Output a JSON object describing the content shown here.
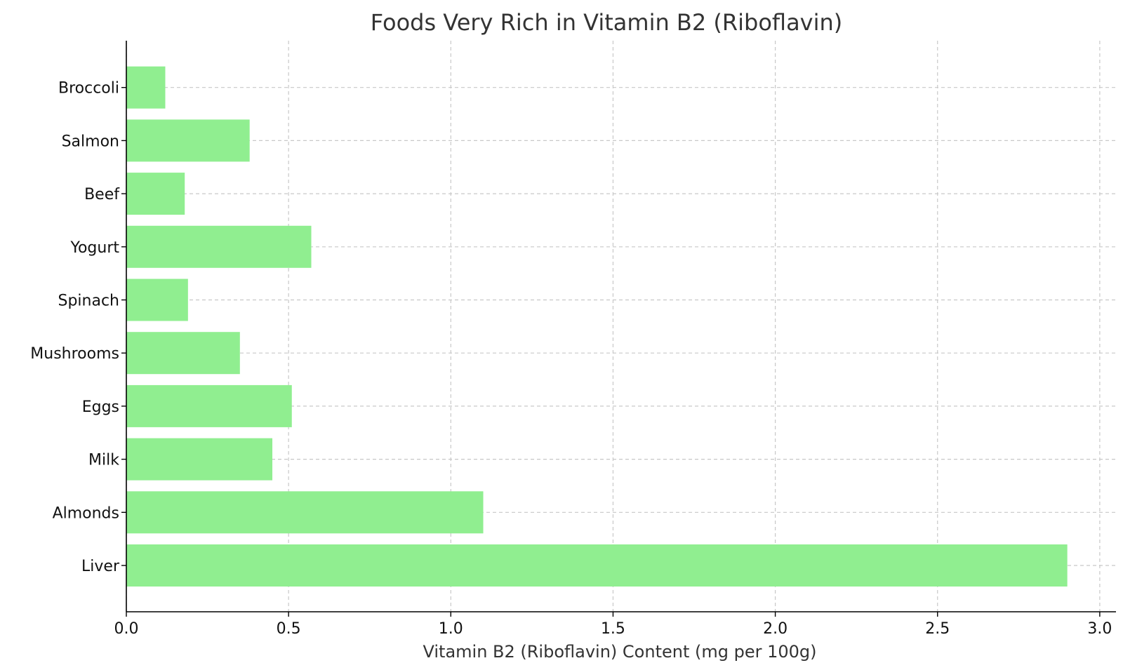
{
  "chart_data": {
    "type": "bar",
    "orientation": "horizontal",
    "title": "Foods Very Rich in Vitamin B2 (Riboflavin)",
    "xlabel": "Vitamin B2 (Riboflavin) Content (mg per 100g)",
    "ylabel": "",
    "categories": [
      "Liver",
      "Almonds",
      "Milk",
      "Eggs",
      "Mushrooms",
      "Spinach",
      "Yogurt",
      "Beef",
      "Salmon",
      "Broccoli"
    ],
    "values": [
      2.9,
      1.1,
      0.45,
      0.51,
      0.35,
      0.19,
      0.57,
      0.18,
      0.38,
      0.12
    ],
    "xlim": [
      0,
      3.05
    ],
    "xticks": [
      0.0,
      0.5,
      1.0,
      1.5,
      2.0,
      2.5,
      3.0
    ],
    "xtick_labels": [
      "0.0",
      "0.5",
      "1.0",
      "1.5",
      "2.0",
      "2.5",
      "3.0"
    ],
    "grid": true,
    "bar_color": "#90ee90"
  }
}
